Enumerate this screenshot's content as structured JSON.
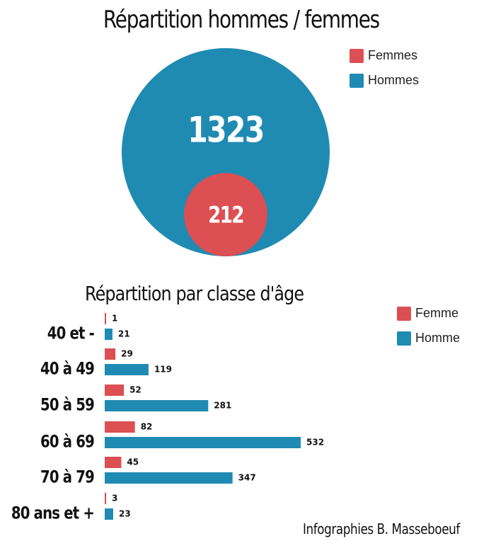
{
  "colors": {
    "femme": "#dc4f52",
    "homme": "#1f8bb3"
  },
  "chart_data": [
    {
      "type": "bubble",
      "title": "Répartition hommes / femmes",
      "legend": [
        "Femmes",
        "Hommes"
      ],
      "series": [
        {
          "name": "Hommes",
          "value": 1323,
          "label": "1323"
        },
        {
          "name": "Femmes",
          "value": 212,
          "label": "212"
        }
      ]
    },
    {
      "type": "bar",
      "orientation": "horizontal",
      "title": "Répartition par classe d'âge",
      "legend": [
        "Femme",
        "Homme"
      ],
      "categories": [
        "40 et -",
        "40 à 49",
        "50 à 59",
        "60 à 69",
        "70 à 79",
        "80 ans et +"
      ],
      "series": [
        {
          "name": "Femme",
          "values": [
            1,
            29,
            52,
            82,
            45,
            3
          ]
        },
        {
          "name": "Homme",
          "values": [
            21,
            119,
            281,
            532,
            347,
            23
          ]
        }
      ]
    }
  ],
  "credit": "Infographies B. Masseboeuf"
}
